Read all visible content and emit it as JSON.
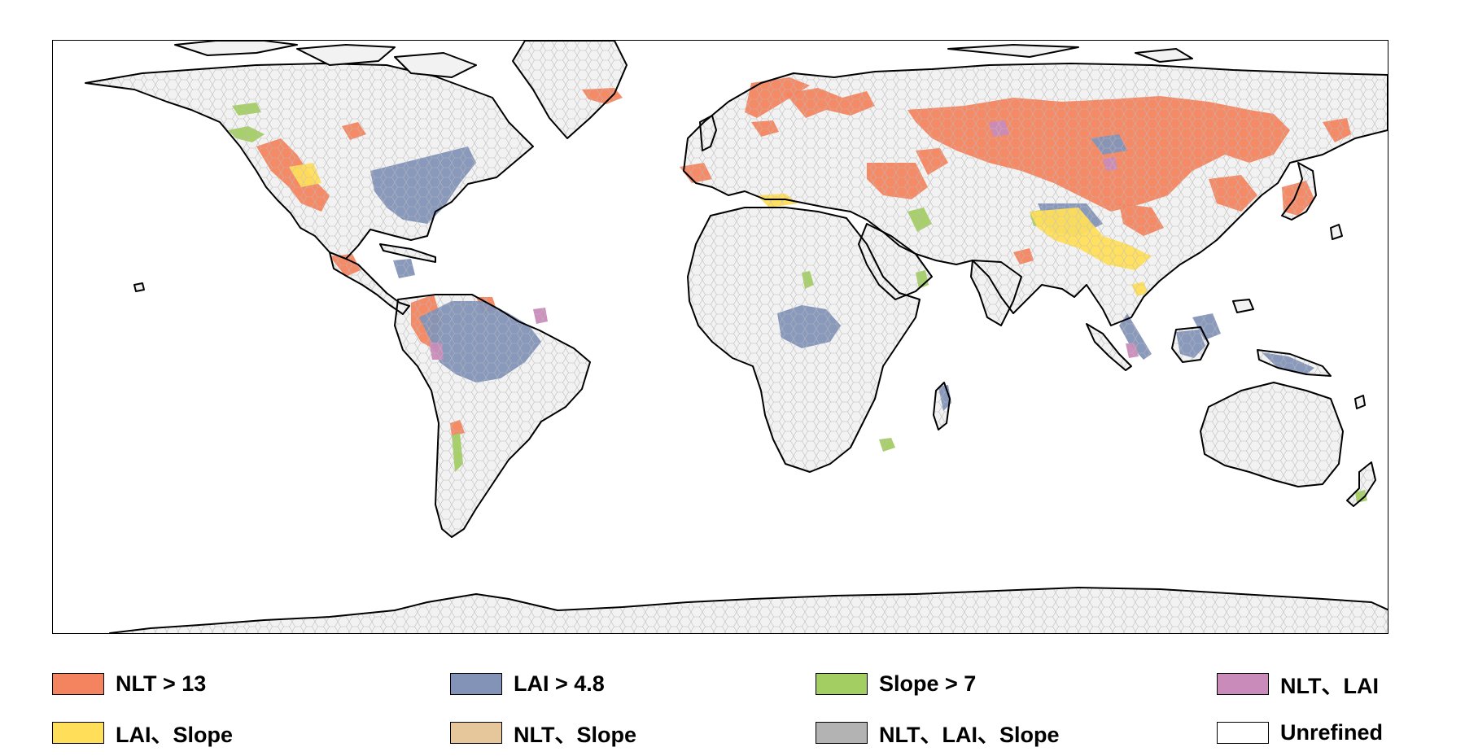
{
  "legend": {
    "items": [
      {
        "label": "NLT > 13",
        "color": "#F4845F"
      },
      {
        "label": "LAI > 4.8",
        "color": "#8393B8"
      },
      {
        "label": "Slope > 7",
        "color": "#A3CE62"
      },
      {
        "label": "NLT、LAI",
        "color": "#C98BB9"
      },
      {
        "label": "LAI、Slope",
        "color": "#FFDE59"
      },
      {
        "label": "NLT、Slope",
        "color": "#E6C79C"
      },
      {
        "label": "NLT、LAI、Slope",
        "color": "#B3B3B3"
      },
      {
        "label": "Unrefined",
        "color": "#FFFFFF"
      }
    ]
  },
  "map": {
    "land_color": "#F2F2F2",
    "mesh_color": "#BDBDBD",
    "coast_color": "#000000"
  }
}
